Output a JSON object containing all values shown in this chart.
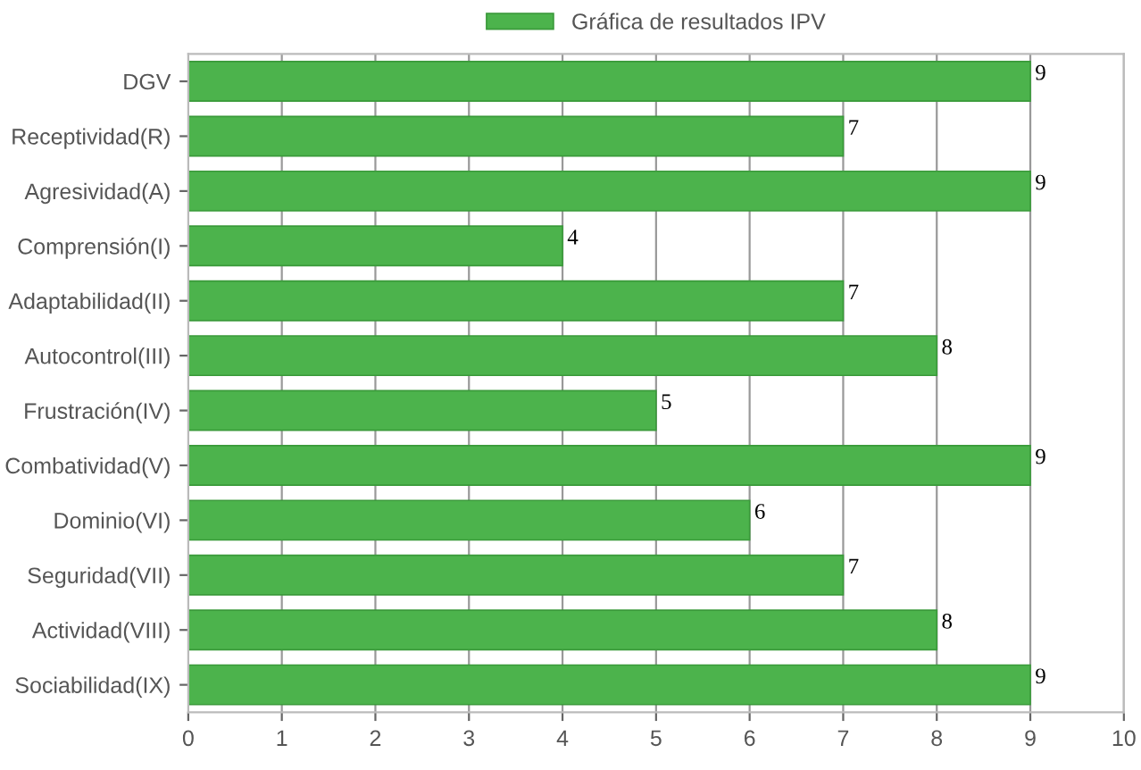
{
  "chart_data": {
    "type": "bar",
    "orientation": "horizontal",
    "categories": [
      "DGV",
      "Receptividad(R)",
      "Agresividad(A)",
      "Comprensión(I)",
      "Adaptabilidad(II)",
      "Autocontrol(III)",
      "Frustración(IV)",
      "Combatividad(V)",
      "Dominio(VI)",
      "Seguridad(VII)",
      "Actividad(VIII)",
      "Sociabilidad(IX)"
    ],
    "series": [
      {
        "name": "Gráfica de resultados IPV",
        "color": "#4cb34c",
        "values": [
          9,
          7,
          9,
          4,
          7,
          8,
          5,
          9,
          6,
          7,
          8,
          9
        ]
      }
    ],
    "xlim": [
      0,
      10
    ],
    "xticks": [
      0,
      1,
      2,
      3,
      4,
      5,
      6,
      7,
      8,
      9,
      10
    ],
    "grid": "x",
    "legend": "top",
    "data_labels": true
  }
}
